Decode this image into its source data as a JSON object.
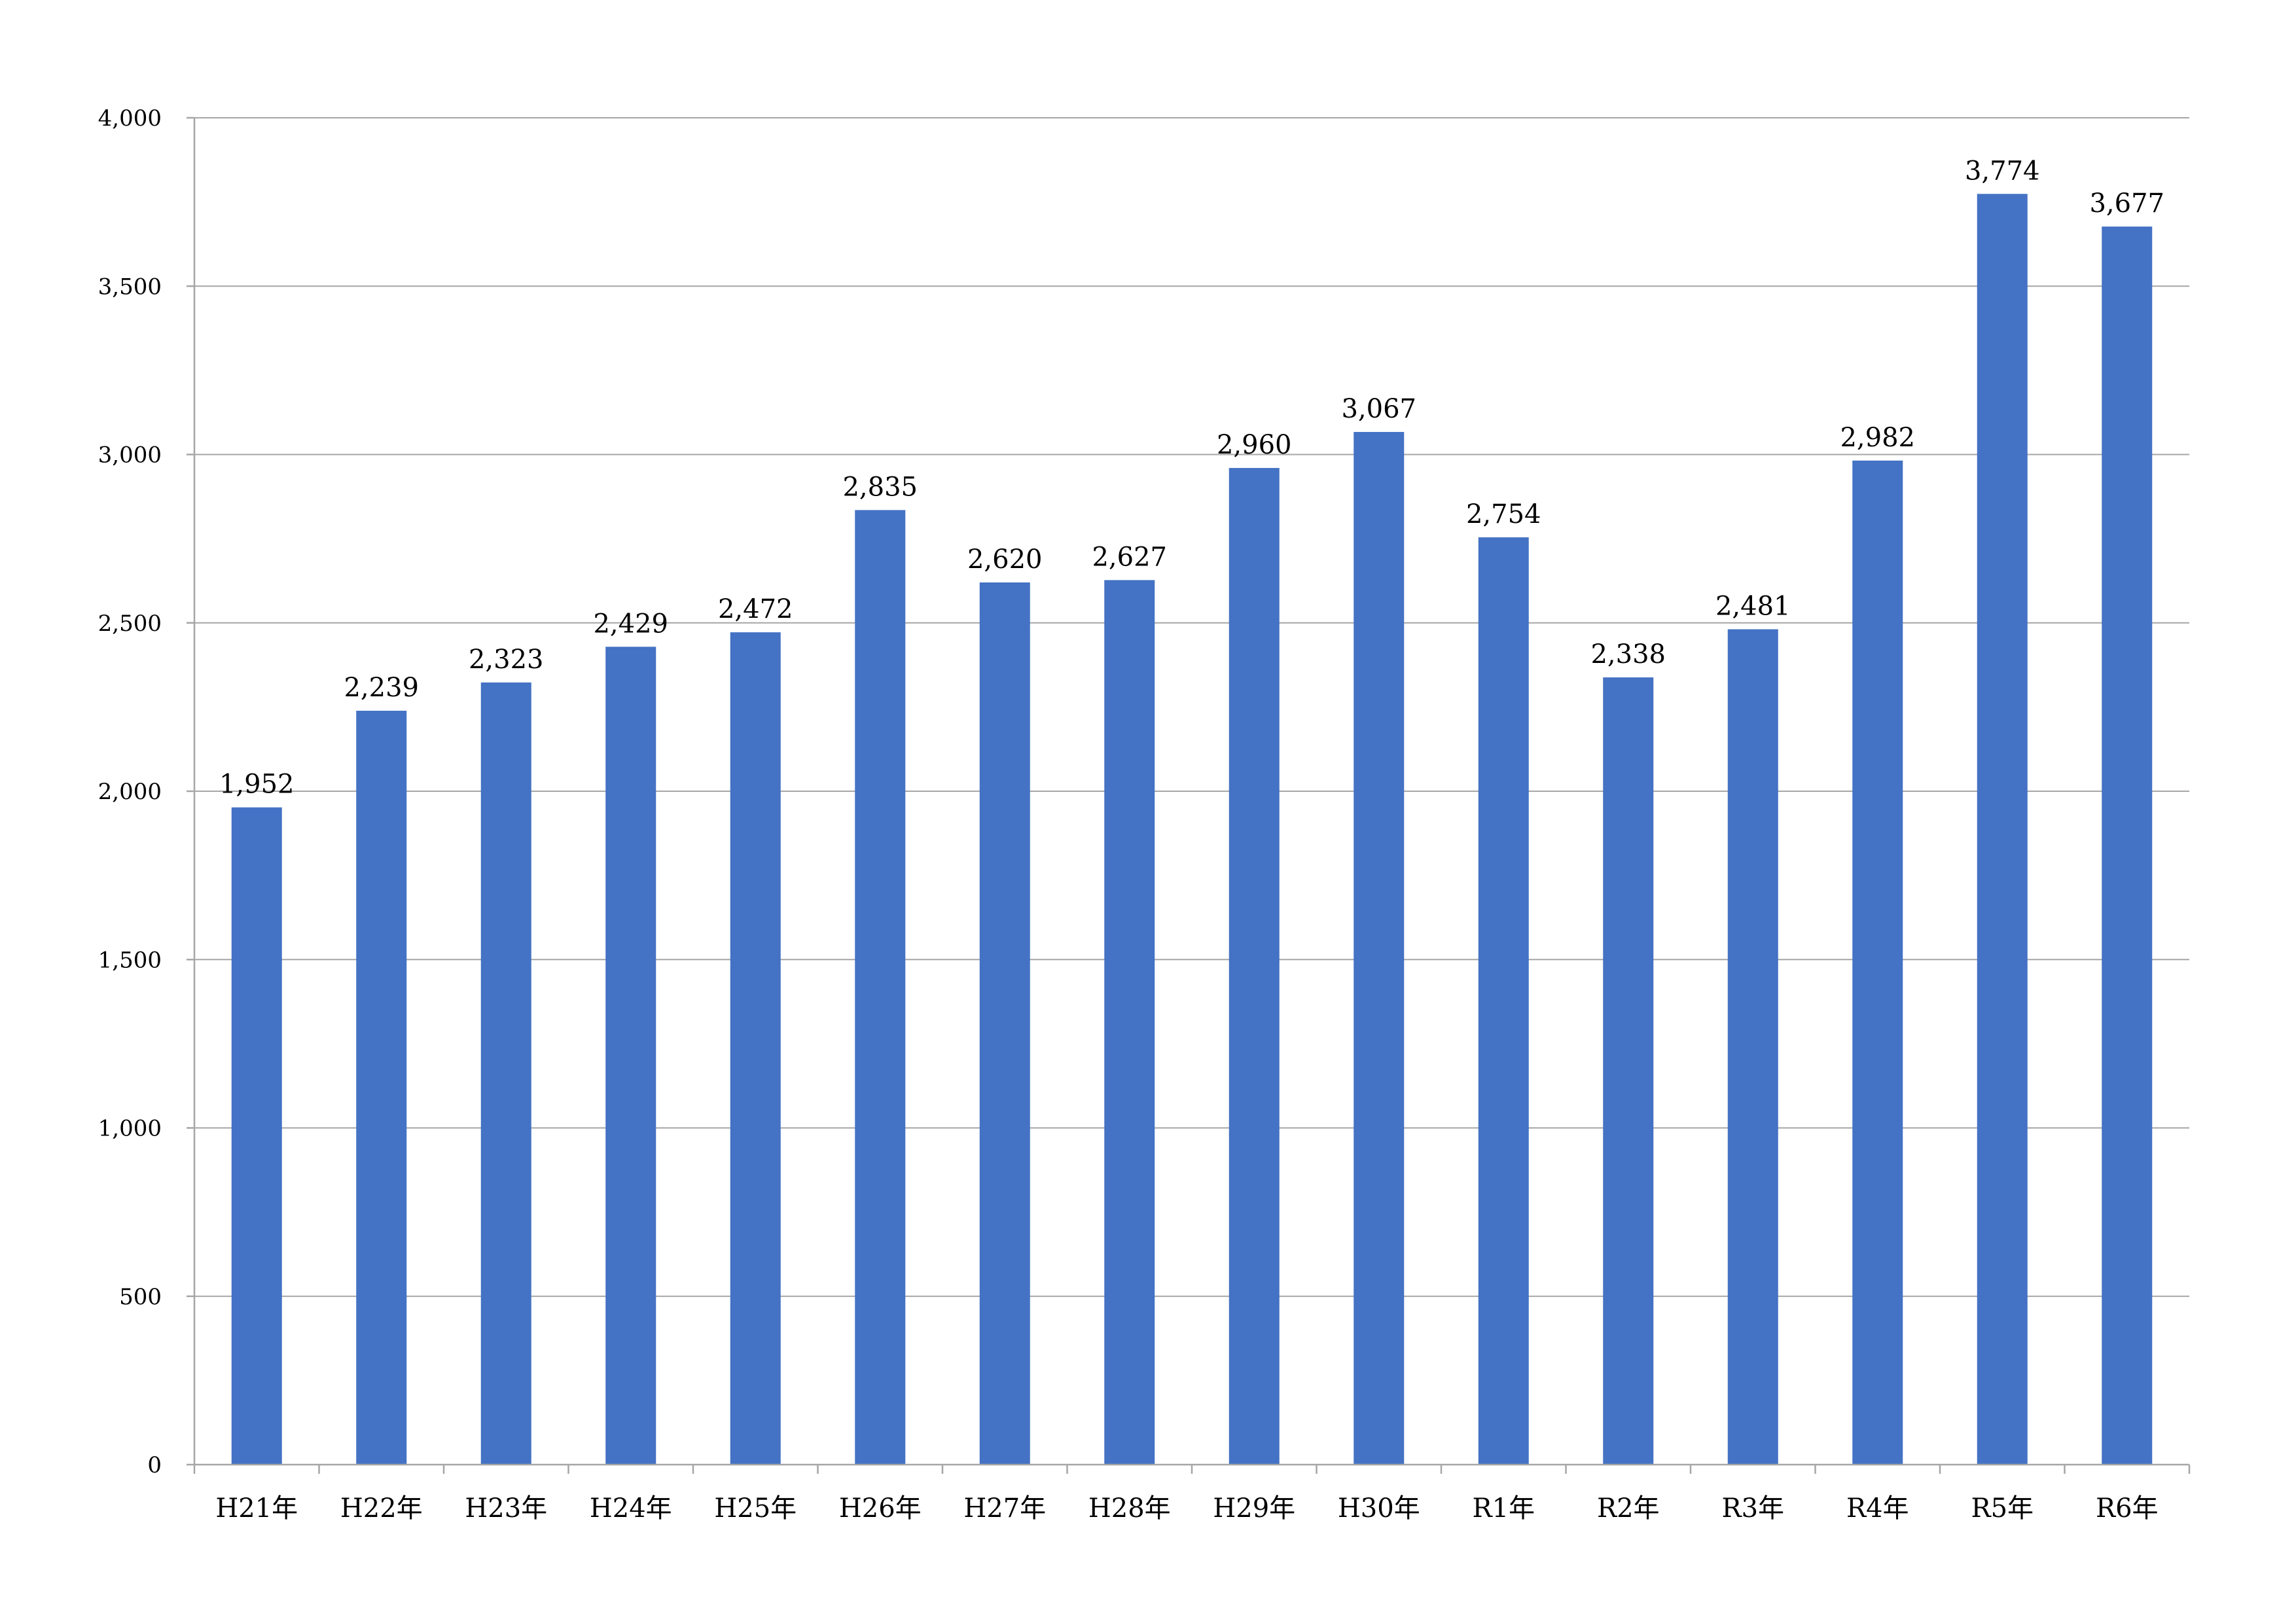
{
  "chart_data": {
    "type": "bar",
    "title": "",
    "xlabel": "",
    "ylabel": "",
    "categories": [
      "H21年",
      "H22年",
      "H23年",
      "H24年",
      "H25年",
      "H26年",
      "H27年",
      "H28年",
      "H29年",
      "H30年",
      "R1年",
      "R2年",
      "R3年",
      "R4年",
      "R5年",
      "R6年"
    ],
    "values": [
      1952,
      2239,
      2323,
      2429,
      2472,
      2835,
      2620,
      2627,
      2960,
      3067,
      2754,
      2338,
      2481,
      2982,
      3774,
      3677
    ],
    "value_labels": [
      "1,952",
      "2,239",
      "2,323",
      "2,429",
      "2,472",
      "2,835",
      "2,620",
      "2,627",
      "2,960",
      "3,067",
      "2,754",
      "2,338",
      "2,481",
      "2,982",
      "3,774",
      "3,677"
    ],
    "ylim": [
      0,
      4000
    ],
    "yticks": [
      0,
      500,
      1000,
      1500,
      2000,
      2500,
      3000,
      3500,
      4000
    ],
    "ytick_labels": [
      "0",
      "500",
      "1,000",
      "1,500",
      "2,000",
      "2,500",
      "3,000",
      "3,500",
      "4,000"
    ],
    "grid": true,
    "legend": "none",
    "bar_color": "#4472c4",
    "grid_color": "#a6a6a6"
  }
}
